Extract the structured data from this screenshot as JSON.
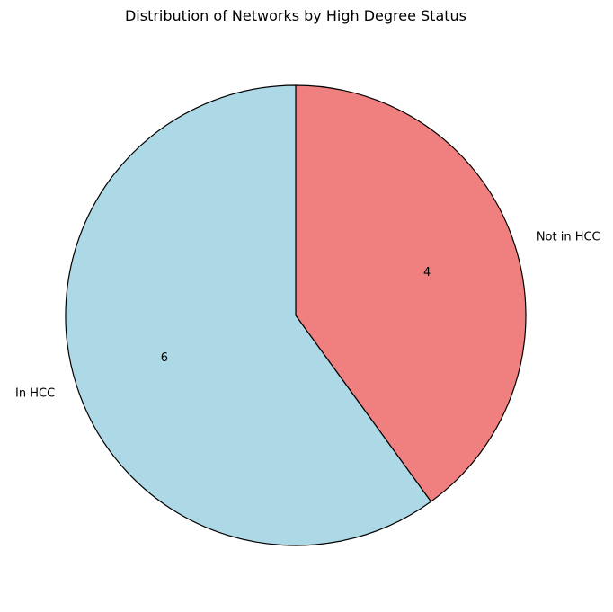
{
  "chart_data": {
    "type": "pie",
    "title": "Distribution of Networks by High Degree Status",
    "categories": [
      "Not in HCC",
      "In HCC"
    ],
    "values": [
      4,
      6
    ],
    "value_labels": [
      "4",
      "6"
    ],
    "colors": [
      "#f08080",
      "#add8e6"
    ],
    "edge_color": "#000000",
    "start_angle_deg": 90,
    "direction": "clockwise",
    "legend": "none"
  }
}
